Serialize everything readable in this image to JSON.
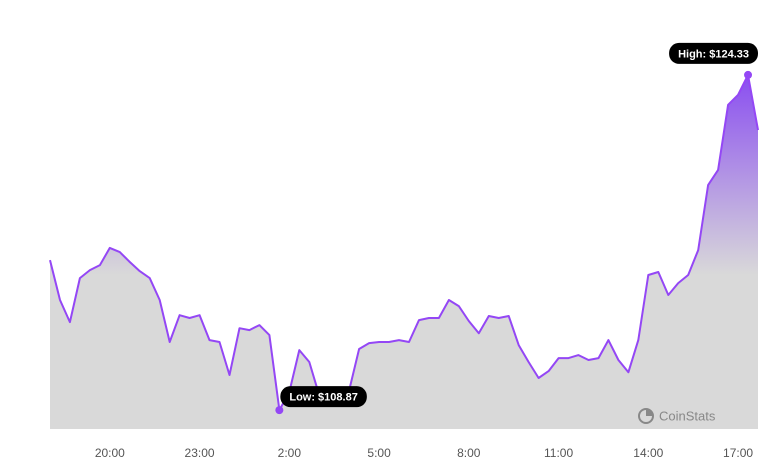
{
  "chart_data": {
    "type": "area",
    "categories": [
      null,
      null,
      null,
      null,
      null,
      null,
      "20:00",
      null,
      null,
      null,
      null,
      null,
      null,
      null,
      null,
      "23:00",
      null,
      null,
      null,
      null,
      null,
      null,
      null,
      null,
      "2:00",
      null,
      null,
      null,
      null,
      null,
      null,
      null,
      null,
      "5:00",
      null,
      null,
      null,
      null,
      null,
      null,
      null,
      null,
      "8:00",
      null,
      null,
      null,
      null,
      null,
      null,
      null,
      null,
      "11:00",
      null,
      null,
      null,
      null,
      null,
      null,
      null,
      null,
      "14:00",
      null,
      null,
      null,
      null,
      null,
      null,
      null,
      null,
      "17:00",
      null,
      null
    ],
    "values": [
      115.79,
      113.95,
      112.93,
      114.96,
      115.33,
      115.56,
      116.35,
      116.16,
      115.7,
      115.28,
      114.96,
      113.95,
      112.01,
      113.25,
      113.12,
      113.25,
      112.1,
      112.01,
      110.49,
      112.65,
      112.56,
      112.79,
      112.33,
      108.87,
      109.7,
      111.64,
      111.09,
      109.56,
      109.56,
      109.33,
      109.79,
      111.69,
      111.96,
      112.01,
      112.01,
      112.1,
      112.01,
      113.02,
      113.12,
      113.12,
      113.95,
      113.67,
      112.98,
      112.42,
      113.21,
      113.12,
      113.21,
      111.87,
      111.09,
      110.35,
      110.67,
      111.27,
      111.27,
      111.41,
      111.18,
      111.27,
      112.1,
      111.18,
      110.62,
      112.1,
      115.1,
      115.24,
      114.18,
      114.73,
      115.1,
      116.25,
      119.25,
      119.95,
      122.95,
      123.41,
      124.33,
      121.79
    ],
    "value_labels": [
      null,
      null,
      null,
      null,
      null,
      null,
      null,
      null,
      null,
      null,
      null,
      null,
      null,
      null,
      null,
      null,
      null,
      null,
      null,
      null,
      null,
      null,
      null,
      "Low: $108.87",
      null,
      null,
      null,
      null,
      null,
      null,
      null,
      null,
      null,
      null,
      null,
      null,
      null,
      null,
      null,
      null,
      null,
      null,
      null,
      null,
      null,
      null,
      null,
      null,
      null,
      null,
      null,
      null,
      null,
      null,
      null,
      null,
      null,
      null,
      null,
      null,
      null,
      null,
      null,
      null,
      null,
      null,
      null,
      null,
      null,
      null,
      "High: $124.33",
      null
    ],
    "color": "#9447f5",
    "ylim": [
      108,
      127
    ],
    "watermark": "CoinStats"
  }
}
